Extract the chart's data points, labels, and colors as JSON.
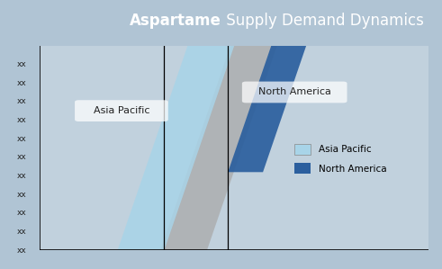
{
  "title_bold": "Aspartame",
  "title_regular": " Supply Demand Dynamics",
  "title_bg_color": "#1e3f5a",
  "title_text_color": "#ffffff",
  "bg_color": "#b0c4d4",
  "plot_bg_color": "#bfcfdb",
  "tick_label": "xx",
  "n_ticks": 11,
  "gray_color": "#aaaaaa",
  "gray_alpha": 0.75,
  "asia_color": "#a8d4e8",
  "asia_alpha": 0.85,
  "na_color": "#2b5f9e",
  "na_alpha": 0.92,
  "legend_asia_color": "#a8d4e8",
  "legend_na_color": "#2b5f9e",
  "label_asia": "Asia Pacific",
  "label_na": "North America",
  "xlim": [
    0,
    10
  ],
  "ylim": [
    0,
    11
  ]
}
